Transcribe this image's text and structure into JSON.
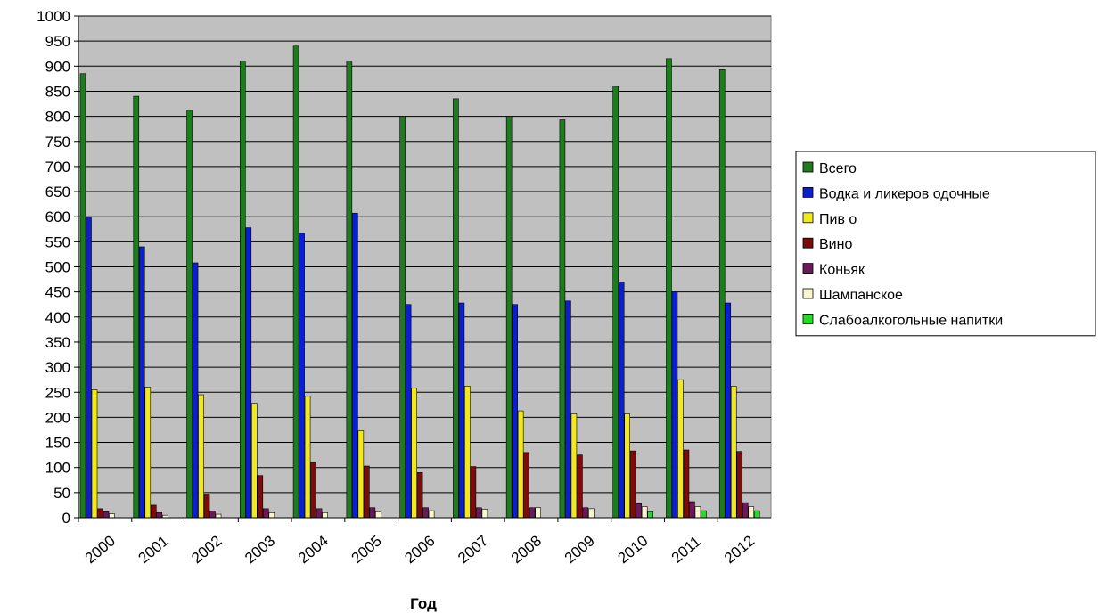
{
  "chart_data": {
    "type": "bar",
    "title": "",
    "xlabel": "Год",
    "ylabel": "",
    "ylim": [
      0,
      1000
    ],
    "ytick_step": 50,
    "grid": true,
    "legend_position": "right",
    "plot_background": "#c0c0c0",
    "categories": [
      "2000",
      "2001",
      "2002",
      "2003",
      "2004",
      "2005",
      "2006",
      "2007",
      "2008",
      "2009",
      "2010",
      "2011",
      "2012"
    ],
    "series": [
      {
        "name": "Всего",
        "color": "#1e7b1e",
        "values": [
          885,
          840,
          812,
          910,
          940,
          910,
          800,
          835,
          800,
          793,
          860,
          915,
          893
        ]
      },
      {
        "name": "Водка и ликеров одочные",
        "color": "#0a1fd0",
        "values": [
          600,
          540,
          508,
          578,
          567,
          607,
          425,
          428,
          425,
          432,
          470,
          450,
          428
        ]
      },
      {
        "name": "Пив о",
        "color": "#f2e91a",
        "values": [
          255,
          260,
          245,
          228,
          242,
          173,
          258,
          262,
          213,
          207,
          207,
          275,
          262
        ]
      },
      {
        "name": "Вино",
        "color": "#7a0c0c",
        "values": [
          18,
          25,
          47,
          84,
          110,
          103,
          90,
          102,
          130,
          125,
          133,
          135,
          132
        ]
      },
      {
        "name": "Коньяк",
        "color": "#6a1a5a",
        "values": [
          12,
          10,
          13,
          18,
          18,
          20,
          20,
          20,
          20,
          20,
          28,
          32,
          30
        ]
      },
      {
        "name": "Шампанское",
        "color": "#f8f6cc",
        "values": [
          8,
          5,
          7,
          10,
          10,
          12,
          14,
          17,
          20,
          18,
          22,
          22,
          22
        ]
      },
      {
        "name": "Слабоалкогольные напитки",
        "color": "#22dd22",
        "values": [
          0,
          0,
          0,
          0,
          0,
          0,
          0,
          0,
          0,
          0,
          12,
          14,
          14
        ]
      }
    ]
  }
}
